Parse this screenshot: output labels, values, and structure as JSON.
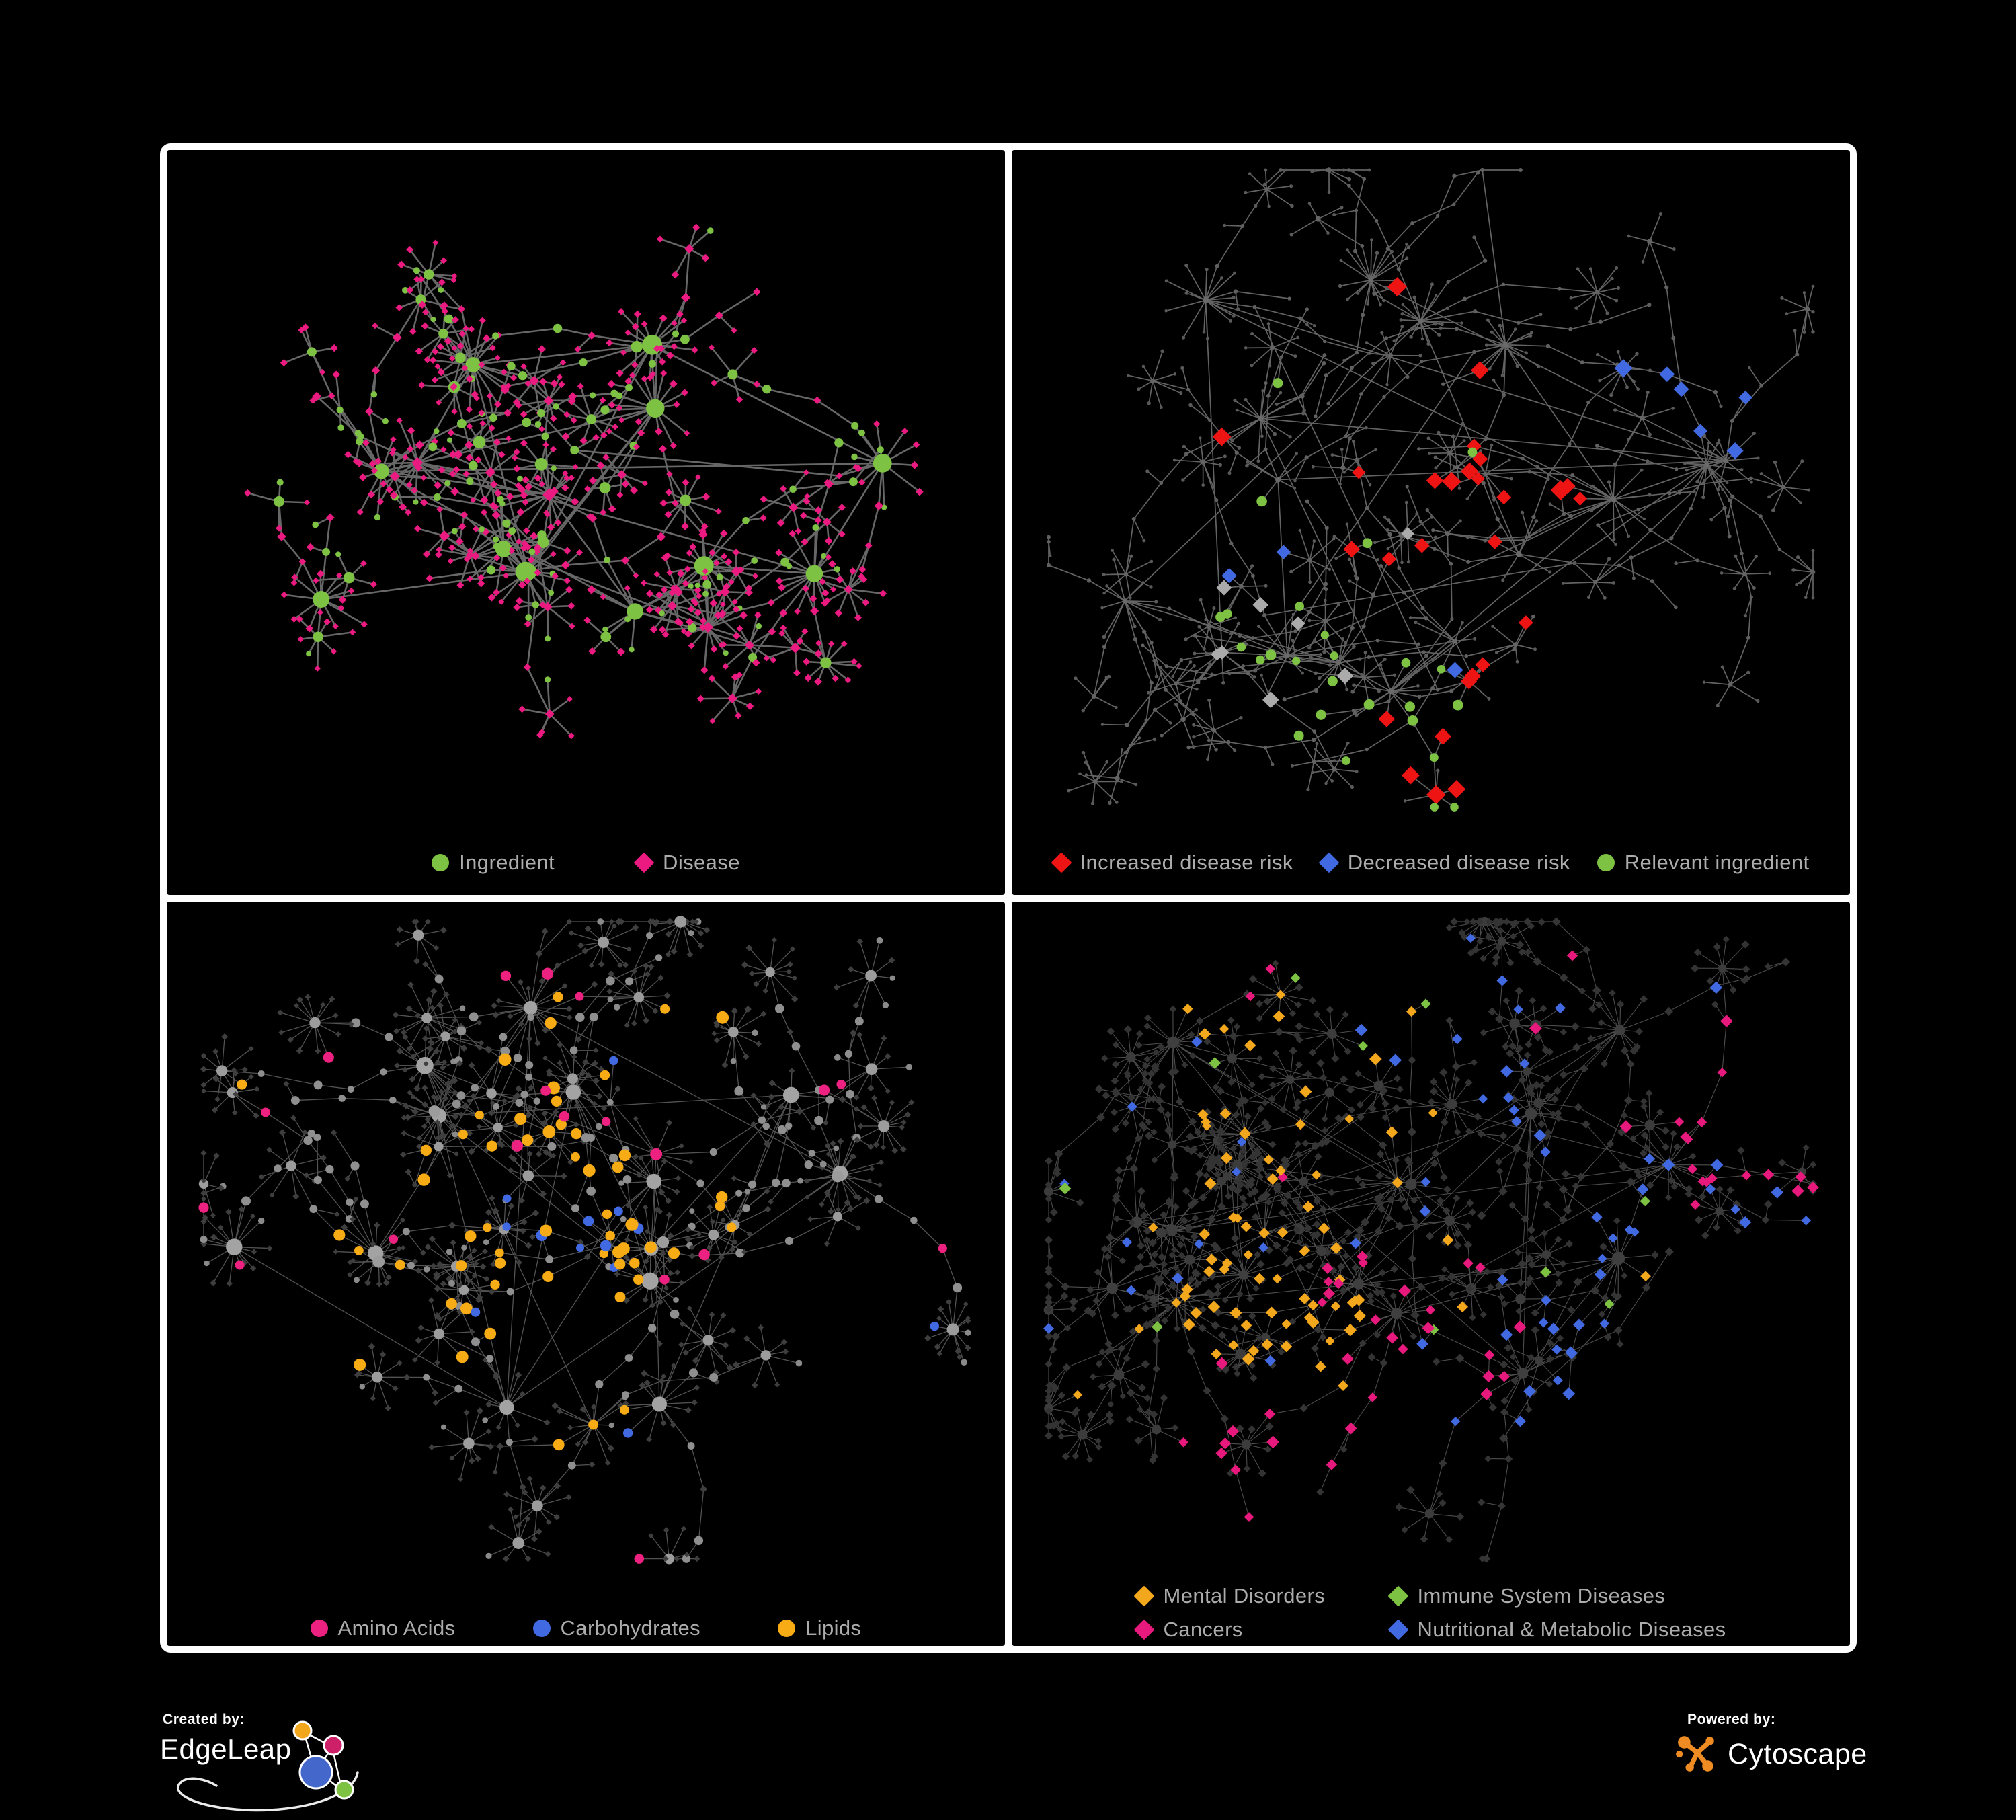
{
  "panels": [
    {
      "id": "ingredient-disease",
      "legend": {
        "layout": "row",
        "gap": 120,
        "items": [
          {
            "label": "Ingredient",
            "shape": "circle",
            "color": "#7DC242"
          },
          {
            "label": "Disease",
            "shape": "diamond",
            "color": "#EA1A80"
          }
        ]
      },
      "network": {
        "seed": 20133,
        "hubCount": 15,
        "hubSpread": 430,
        "hubLeaves": [
          5,
          16
        ],
        "leafR": [
          28,
          70
        ],
        "branches": [
          2,
          6
        ],
        "chain": [
          1,
          4
        ],
        "step": [
          45,
          95
        ],
        "midLeafChance": 0.35,
        "fanChance": 0.6,
        "fan": [
          4,
          10
        ],
        "fanR": [
          26,
          52
        ],
        "crossLinks": 10,
        "edge": {
          "color": "#6D6D6D",
          "width": 2.6,
          "opacity": 0.95
        },
        "roles": {
          "hub": [
            {
              "w": 0.75,
              "shape": "circle",
              "color": "#7DC242",
              "size": [
                10,
                15
              ]
            },
            {
              "w": 0.25,
              "shape": "diamond",
              "color": "#EA1A80",
              "size": [
                8,
                11
              ]
            }
          ],
          "hub2": [
            {
              "w": 0.5,
              "shape": "circle",
              "color": "#7DC242",
              "size": [
                7,
                10
              ]
            },
            {
              "w": 0.5,
              "shape": "diamond",
              "color": "#EA1A80",
              "size": [
                6,
                8
              ]
            }
          ],
          "chain": [
            {
              "w": 0.45,
              "shape": "circle",
              "color": "#7DC242",
              "size": [
                5,
                7
              ]
            },
            {
              "w": 0.55,
              "shape": "diamond",
              "color": "#EA1A80",
              "size": [
                5,
                7
              ]
            }
          ],
          "leaf": [
            {
              "w": 0.12,
              "shape": "circle",
              "color": "#7DC242",
              "size": [
                4,
                5
              ]
            },
            {
              "w": 0.88,
              "shape": "diamond",
              "color": "#EA1A80",
              "size": [
                4.5,
                6
              ]
            }
          ]
        },
        "highlights": []
      }
    },
    {
      "id": "disease-risk",
      "legend": {
        "layout": "row",
        "gap": 40,
        "items": [
          {
            "label": "Increased disease risk",
            "shape": "diamond",
            "color": "#EE1414"
          },
          {
            "label": "Decreased disease risk",
            "shape": "diamond",
            "color": "#4169E1"
          },
          {
            "label": "Relevant ingredient",
            "shape": "circle",
            "color": "#7DC242"
          }
        ]
      },
      "network": {
        "seed": 48271,
        "hubCount": 16,
        "hubSpread": 450,
        "hubLeaves": [
          4,
          14
        ],
        "leafR": [
          26,
          65
        ],
        "branches": [
          3,
          7
        ],
        "chain": [
          2,
          5
        ],
        "step": [
          42,
          85
        ],
        "midLeafChance": 0.3,
        "fanChance": 0.55,
        "fan": [
          4,
          9
        ],
        "fanR": [
          24,
          48
        ],
        "crossLinks": 12,
        "edge": {
          "color": "#686868",
          "width": 1.7,
          "opacity": 0.95
        },
        "roles": {
          "hub": [
            {
              "w": 1,
              "shape": "circle",
              "color": "#6A6A6A",
              "size": [
                3.5,
                4.5
              ]
            }
          ],
          "hub2": [
            {
              "w": 1,
              "shape": "circle",
              "color": "#646464",
              "size": [
                3,
                4
              ]
            }
          ],
          "chain": [
            {
              "w": 1,
              "shape": "circle",
              "color": "#606060",
              "size": [
                2.6,
                3.2
              ]
            }
          ],
          "leaf": [
            {
              "w": 1,
              "shape": "circle",
              "color": "#5A5A5A",
              "size": [
                2.2,
                2.8
              ]
            }
          ]
        },
        "highlights": [
          {
            "name": "increased-risk",
            "shape": "diamond",
            "color": "#EE1414",
            "count": 27,
            "size": [
              10,
              15
            ],
            "clusterProb": 0.9,
            "clusters": [
              [
                0.42,
                0.4,
                0.2
              ],
              [
                0.55,
                0.48,
                0.16
              ],
              [
                0.63,
                0.78,
                0.06
              ]
            ]
          },
          {
            "name": "decreased-risk",
            "shape": "diamond",
            "color": "#4169E1",
            "count": 9,
            "size": [
              10,
              14
            ],
            "clusterProb": 0.95,
            "clusters": [
              [
                0.27,
                0.5,
                0.07
              ],
              [
                0.83,
                0.3,
                0.03
              ]
            ]
          },
          {
            "name": "unclassified",
            "shape": "diamond",
            "color": "#ABABAB",
            "count": 8,
            "size": [
              9,
              13
            ],
            "clusterProb": 0.85,
            "clusters": [
              [
                0.35,
                0.55,
                0.22
              ],
              [
                0.52,
                0.6,
                0.15
              ]
            ]
          },
          {
            "name": "relevant-ingredient",
            "shape": "circle",
            "color": "#7DC242",
            "count": 26,
            "size": [
              5.5,
              8
            ],
            "clusterProb": 0.85,
            "clusters": [
              [
                0.38,
                0.42,
                0.25
              ],
              [
                0.3,
                0.7,
                0.1
              ],
              [
                0.5,
                0.8,
                0.05
              ]
            ]
          }
        ]
      }
    },
    {
      "id": "nutrient-classes",
      "legend": {
        "layout": "row",
        "gap": 115,
        "items": [
          {
            "label": "Amino Acids",
            "shape": "circle",
            "color": "#EC2180"
          },
          {
            "label": "Carbohydrates",
            "shape": "circle",
            "color": "#4169E1"
          },
          {
            "label": "Lipids",
            "shape": "circle",
            "color": "#F7AC15"
          }
        ]
      },
      "network": {
        "seed": 90210,
        "hubCount": 15,
        "hubSpread": 430,
        "hubLeaves": [
          6,
          18
        ],
        "leafR": [
          26,
          64
        ],
        "branches": [
          2,
          6
        ],
        "chain": [
          2,
          5
        ],
        "step": [
          44,
          90
        ],
        "midLeafChance": 0.4,
        "fanChance": 0.65,
        "fan": [
          5,
          14
        ],
        "fanR": [
          26,
          56
        ],
        "crossLinks": 14,
        "edge": {
          "color": "#8A8A8A",
          "width": 1.3,
          "opacity": 0.6
        },
        "roles": {
          "hub": [
            {
              "w": 1,
              "shape": "circle",
              "color": "#A3A3A3",
              "size": [
                9,
                13
              ]
            }
          ],
          "hub2": [
            {
              "w": 1,
              "shape": "circle",
              "color": "#9C9C9C",
              "size": [
                7,
                9
              ]
            }
          ],
          "chain": [
            {
              "w": 0.75,
              "shape": "circle",
              "color": "#8F8F8F",
              "size": [
                5,
                7
              ]
            },
            {
              "w": 0.25,
              "shape": "diamond",
              "color": "#3E3E3E",
              "size": [
                4.5,
                5.5
              ]
            }
          ],
          "leaf": [
            {
              "w": 0.92,
              "shape": "diamond",
              "color": "#3E3E3E",
              "size": [
                4,
                5.2
              ]
            },
            {
              "w": 0.08,
              "shape": "circle",
              "color": "#8A8A8A",
              "size": [
                4,
                5
              ]
            }
          ]
        },
        "highlights": [
          {
            "name": "lipids",
            "shape": "circle",
            "color": "#F7AC15",
            "count": 58,
            "size": [
              6.5,
              9.5
            ],
            "clusterProb": 0.85,
            "clusters": [
              [
                0.5,
                0.44,
                0.1
              ],
              [
                0.47,
                0.57,
                0.16
              ],
              [
                0.36,
                0.5,
                0.22
              ],
              [
                0.55,
                0.3,
                0.2
              ]
            ]
          },
          {
            "name": "carbohydrates",
            "shape": "circle",
            "color": "#4169E1",
            "count": 13,
            "size": [
              6,
              8.5
            ],
            "clusterProb": 0.8,
            "clusters": [
              [
                0.49,
                0.47,
                0.09
              ],
              [
                0.2,
                0.45,
                0.25
              ]
            ]
          },
          {
            "name": "amino-acids",
            "shape": "circle",
            "color": "#EC2180",
            "count": 19,
            "size": [
              6.5,
              9
            ],
            "clusterProb": 0.8,
            "clusters": [
              [
                0.5,
                0.5,
                0.55
              ]
            ]
          }
        ]
      }
    },
    {
      "id": "disease-classes",
      "legend": {
        "layout": "grid",
        "items": [
          {
            "label": "Mental Disorders",
            "shape": "diamond",
            "color": "#F3A71C"
          },
          {
            "label": "Immune System Diseases",
            "shape": "diamond",
            "color": "#7DC242"
          },
          {
            "label": "Cancers",
            "shape": "diamond",
            "color": "#E8197D"
          },
          {
            "label": "Nutritional & Metabolic Diseases",
            "shape": "diamond",
            "color": "#4169E1"
          }
        ]
      },
      "network": {
        "seed": 7321,
        "hubCount": 17,
        "hubSpread": 450,
        "hubLeaves": [
          6,
          16
        ],
        "leafR": [
          24,
          58
        ],
        "branches": [
          3,
          7
        ],
        "chain": [
          2,
          5
        ],
        "step": [
          42,
          88
        ],
        "midLeafChance": 0.45,
        "fanChance": 0.6,
        "fan": [
          5,
          12
        ],
        "fanR": [
          24,
          50
        ],
        "crossLinks": 16,
        "edge": {
          "color": "#9A9A9A",
          "width": 1.1,
          "opacity": 0.5
        },
        "roles": {
          "hub": [
            {
              "w": 1,
              "shape": "circle",
              "color": "#3F3F3F",
              "size": [
                7,
                10
              ]
            }
          ],
          "hub2": [
            {
              "w": 1,
              "shape": "circle",
              "color": "#3C3C3C",
              "size": [
                6,
                8
              ]
            }
          ],
          "chain": [
            {
              "w": 1,
              "shape": "diamond",
              "color": "#353535",
              "size": [
                5.5,
                6.8
              ]
            }
          ],
          "leaf": [
            {
              "w": 1,
              "shape": "diamond",
              "color": "#333333",
              "size": [
                5,
                6.2
              ]
            }
          ]
        },
        "highlights": [
          {
            "name": "mental-disorders",
            "shape": "diamond",
            "color": "#F3A71C",
            "count": 80,
            "size": [
              7,
              9.5
            ],
            "clusterProb": 0.85,
            "clusters": [
              [
                0.28,
                0.52,
                0.1
              ],
              [
                0.24,
                0.45,
                0.16
              ],
              [
                0.36,
                0.6,
                0.1
              ],
              [
                0.35,
                0.18,
                0.2
              ]
            ]
          },
          {
            "name": "cancers",
            "shape": "diamond",
            "color": "#E8197D",
            "count": 55,
            "size": [
              7,
              9.5
            ],
            "clusterProb": 0.85,
            "clusters": [
              [
                0.46,
                0.55,
                0.13
              ],
              [
                0.52,
                0.63,
                0.08
              ],
              [
                0.88,
                0.28,
                0.05
              ],
              [
                0.3,
                0.85,
                0.1
              ]
            ]
          },
          {
            "name": "nutritional-metabolic",
            "shape": "diamond",
            "color": "#4169E1",
            "count": 62,
            "size": [
              7,
              9.5
            ],
            "clusterProb": 0.75,
            "clusters": [
              [
                0.67,
                0.53,
                0.06
              ],
              [
                0.6,
                0.15,
                0.18
              ],
              [
                0.83,
                0.4,
                0.14
              ],
              [
                0.45,
                0.08,
                0.2
              ],
              [
                0.55,
                0.8,
                0.3
              ]
            ]
          },
          {
            "name": "immune-system",
            "shape": "diamond",
            "color": "#7DC242",
            "count": 10,
            "size": [
              7,
              9
            ],
            "clusterProb": 0.7,
            "clusters": [
              [
                0.5,
                0.45,
                0.4
              ]
            ]
          }
        ]
      }
    }
  ],
  "legend_style": {
    "text_color": "#ACACAC"
  },
  "footer": {
    "created_by": {
      "label": "Created by:",
      "brand": "EdgeLeap"
    },
    "powered_by": {
      "label": "Powered by:",
      "brand": "Cytoscape"
    },
    "edgeleap_logo_colors": {
      "orange": "#F3A71C",
      "pink": "#CE2069",
      "blue": "#4467CC",
      "green": "#7DC242"
    },
    "cytoscape_logo_color": "#EE8B22"
  }
}
